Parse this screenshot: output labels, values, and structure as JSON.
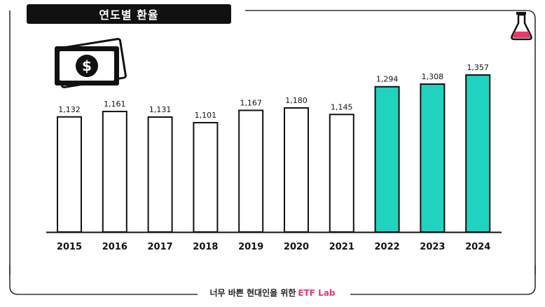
{
  "header": {
    "title": "연도별 환율"
  },
  "footer": {
    "text": "너무 바쁜 현대인을 위한",
    "brand": "ETF Lab"
  },
  "colors": {
    "highlight": "#20d3bf",
    "normal": "#ffffff",
    "stroke": "#111111",
    "brand": "#e8386c",
    "flask_liquid": "#e8386c"
  },
  "icons": {
    "money": "dollar-bill-icon",
    "lab": "flask-icon"
  },
  "chart_data": {
    "type": "bar",
    "categories": [
      "2015",
      "2016",
      "2017",
      "2018",
      "2019",
      "2020",
      "2021",
      "2022",
      "2023",
      "2024"
    ],
    "values": [
      1132,
      1161,
      1131,
      1101,
      1167,
      1180,
      1145,
      1294,
      1308,
      1357
    ],
    "value_labels": [
      "1,132",
      "1,161",
      "1,131",
      "1,101",
      "1,167",
      "1,180",
      "1,145",
      "1,294",
      "1,308",
      "1,357"
    ],
    "highlighted": [
      false,
      false,
      false,
      false,
      false,
      false,
      false,
      true,
      true,
      true
    ],
    "title": "연도별 환율",
    "xlabel": "",
    "ylabel": "",
    "grid": false,
    "legend": "none"
  }
}
